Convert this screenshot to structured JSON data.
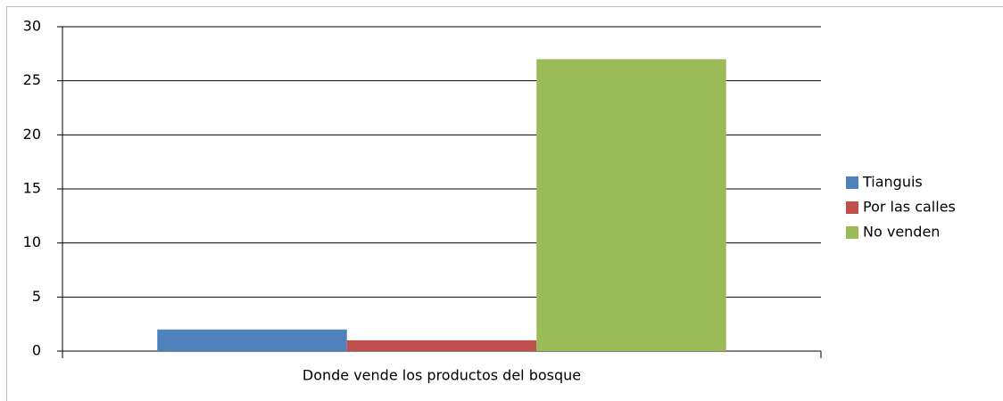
{
  "chart_data": {
    "type": "bar",
    "x_label": "Donde vende los productos del bosque",
    "categories": [
      null
    ],
    "series": [
      {
        "name": "Tianguis",
        "color": "#4f81bd",
        "values": [
          2
        ]
      },
      {
        "name": "Por las calles",
        "color": "#c0504d",
        "values": [
          1
        ]
      },
      {
        "name": "No venden",
        "color": "#9bbb59",
        "values": [
          27
        ]
      }
    ],
    "ylim": [
      0,
      30
    ],
    "yticks": [
      0,
      5,
      10,
      15,
      20,
      25,
      30
    ],
    "grid": true,
    "legend": "right"
  }
}
